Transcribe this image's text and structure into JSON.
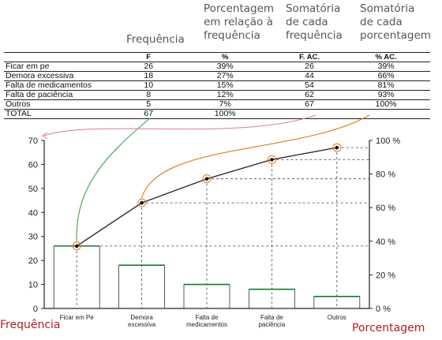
{
  "annotations": {
    "frequencia_header": "Frequência",
    "porcentagem_header": [
      "Porcentagem",
      "em relação à",
      "frequência"
    ],
    "somatoria_freq_header": [
      "Somatória",
      "de cada",
      "frequência"
    ],
    "somatoria_pct_header": [
      "Somatória",
      "de cada",
      "porcentagem"
    ],
    "left_axis_label": "Frequência",
    "right_axis_label": "Porcentagem"
  },
  "table": {
    "headers": [
      "",
      "F",
      "%",
      "F. AC.",
      "% AC."
    ],
    "rows": [
      [
        "Ficar em pe",
        "26",
        "39%",
        "26",
        "39%"
      ],
      [
        "Demora excessiva",
        "18",
        "27%",
        "44",
        "66%"
      ],
      [
        "Falta de medicamentos",
        "10",
        "15%",
        "54",
        "81%"
      ],
      [
        "Falta de paciência",
        "8",
        "12%",
        "62",
        "93%"
      ],
      [
        "Outros",
        "5",
        "7%",
        "67",
        "100%"
      ]
    ],
    "total": [
      "TOTAL",
      "67",
      "100%",
      "",
      ""
    ]
  },
  "chart_data": {
    "type": "bar",
    "categories": [
      "Ficar em Pe",
      "Demora\nexcessiva",
      "Falta de\nmedicamentos",
      "Falta de\npaciência",
      "Outros"
    ],
    "series": [
      {
        "type": "bar",
        "values": [
          26,
          18,
          10,
          8,
          5
        ]
      },
      {
        "type": "line",
        "values": [
          26,
          44,
          54,
          62,
          67
        ]
      }
    ],
    "y_left": {
      "range": [
        0,
        70
      ],
      "ticks": [
        0,
        10,
        20,
        30,
        40,
        50,
        60,
        70
      ]
    },
    "y_right": {
      "range": [
        0,
        100
      ],
      "ticks": [
        "0 %",
        "20 %",
        "40 %",
        "60 %",
        "80 %",
        "100 %"
      ]
    },
    "grid": false,
    "colors": {
      "bar": "#1a7a2e",
      "line": "#222222",
      "annot_green": "#3aa64a",
      "annot_orange": "#e07a1a",
      "annot_pink": "#e07a9a",
      "label_red": "#b22020"
    }
  }
}
